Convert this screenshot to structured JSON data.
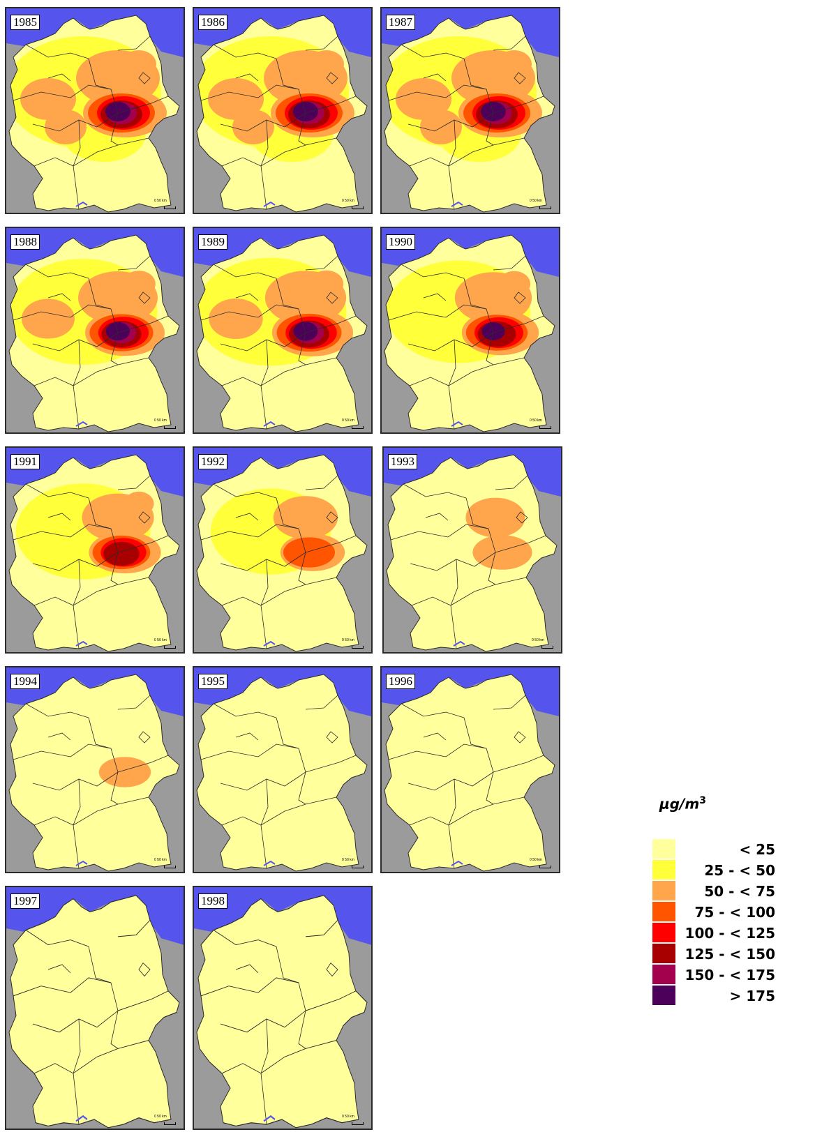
{
  "scale_text": "0   50 km",
  "legend": {
    "unit_main": "μg/m",
    "unit_sup": "3",
    "classes": [
      {
        "label": "< 25",
        "color": "#ffff9c"
      },
      {
        "label": "25 - < 50",
        "color": "#ffff3a"
      },
      {
        "label": "50 - < 75",
        "color": "#ffa64d"
      },
      {
        "label": "75 - < 100",
        "color": "#ff5500"
      },
      {
        "label": "100 - < 125",
        "color": "#ff0000"
      },
      {
        "label": "125 - < 150",
        "color": "#a80000"
      },
      {
        "label": "150 - < 175",
        "color": "#a3004d"
      },
      {
        "label": "> 175",
        "color": "#4d0059"
      }
    ]
  },
  "colors": {
    "sea": "#5555ee",
    "outside": "#9b9b9b",
    "land_base": "#ffff9c",
    "borders": "#2b2b2b"
  },
  "maps": [
    {
      "year": "1985",
      "pollution_level": 1.0
    },
    {
      "year": "1986",
      "pollution_level": 0.95
    },
    {
      "year": "1987",
      "pollution_level": 0.9
    },
    {
      "year": "1988",
      "pollution_level": 0.75
    },
    {
      "year": "1989",
      "pollution_level": 0.78
    },
    {
      "year": "1990",
      "pollution_level": 0.7
    },
    {
      "year": "1991",
      "pollution_level": 0.6
    },
    {
      "year": "1992",
      "pollution_level": 0.45
    },
    {
      "year": "1993",
      "pollution_level": 0.35
    },
    {
      "year": "1994",
      "pollution_level": 0.2
    },
    {
      "year": "1995",
      "pollution_level": 0.12
    },
    {
      "year": "1996",
      "pollution_level": 0.1
    },
    {
      "year": "1997",
      "pollution_level": 0.02
    },
    {
      "year": "1998",
      "pollution_level": 0.0
    }
  ]
}
